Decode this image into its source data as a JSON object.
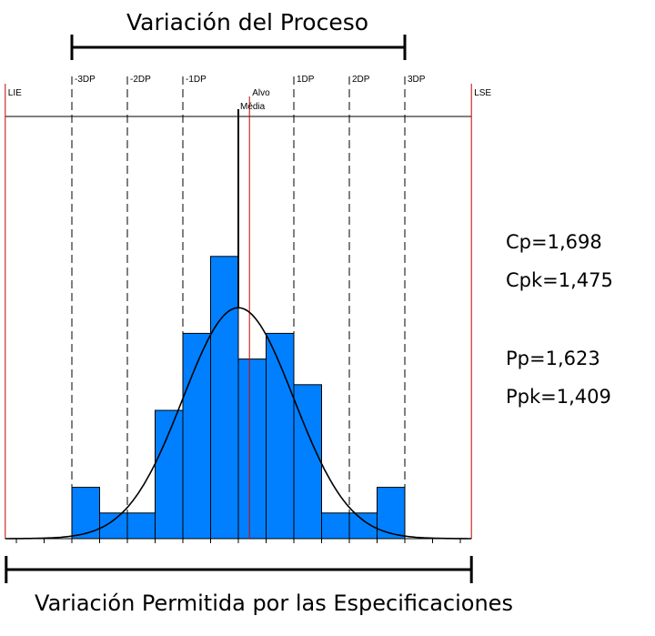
{
  "chart_data": {
    "type": "bar",
    "title": "Variación del Proceso",
    "bottom_caption": "Variación Permitida por las Especificaciones",
    "histogram": {
      "bin_edges": [
        -4,
        -3.5,
        -3,
        -2.5,
        -2,
        -1.5,
        -1,
        -0.5,
        0,
        0.5,
        1,
        1.5,
        2,
        2.5,
        3,
        3.5,
        4
      ],
      "values": [
        0,
        0,
        2,
        1,
        1,
        5,
        8,
        11,
        7,
        8,
        6,
        1,
        1,
        2,
        0,
        0
      ],
      "color": "#0080ff"
    },
    "normal_curve": {
      "mean": 0,
      "sd": 1,
      "peak": 9,
      "color": "#000000"
    },
    "sigma_lines": [
      {
        "label": "-3DP",
        "x": -3
      },
      {
        "label": "-2DP",
        "x": -2
      },
      {
        "label": "-1DP",
        "x": -1
      },
      {
        "label": "1DP",
        "x": 1
      },
      {
        "label": "2DP",
        "x": 2
      },
      {
        "label": "3DP",
        "x": 3
      }
    ],
    "spec_limits": [
      {
        "label": "LIE",
        "x": -4.2,
        "color": "#cc0000"
      },
      {
        "label": "LSE",
        "x": 4.2,
        "color": "#cc0000"
      }
    ],
    "target": {
      "label": "Alvo",
      "x": 0.2,
      "color": "#cc0000"
    },
    "mean": {
      "label": "Média",
      "x": 0
    },
    "xlim": [
      -4.2,
      4.2
    ],
    "ylim": [
      0,
      13
    ]
  },
  "stats": {
    "cp": "Cp=1,698",
    "cpk": "Cpk=1,475",
    "pp": "Pp=1,623",
    "ppk": "Ppk=1,409"
  }
}
